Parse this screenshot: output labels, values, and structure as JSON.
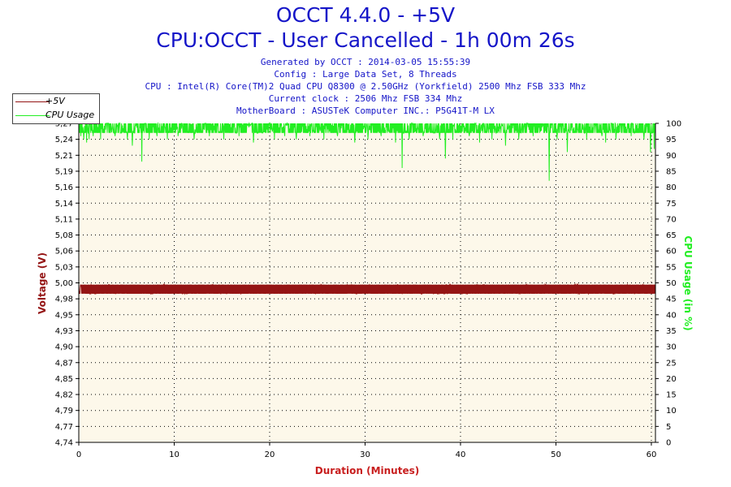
{
  "header": {
    "title": "OCCT 4.4.0 - +5V",
    "subtitle": "CPU:OCCT - User Cancelled - 1h 00m 26s",
    "info_lines": [
      "Generated by OCCT : 2014-03-05 15:55:39",
      "Config : Large Data Set, 8 Threads",
      "CPU : Intel(R) Core(TM)2 Quad CPU Q8300 @ 2.50GHz (Yorkfield) 2500 Mhz FSB 333 Mhz",
      "Current clock : 2506 Mhz FSB 334 Mhz",
      "MotherBoard : ASUSTeK Computer INC.: P5G41T-M LX"
    ]
  },
  "colors": {
    "voltage": "#941414",
    "cpu": "#22ee22",
    "title": "#1515c8",
    "plot_bg": "#fdf8ea",
    "axis_label": "#c81e1e"
  },
  "chart_data": {
    "type": "line",
    "title": "OCCT 4.4.0 - +5V",
    "subtitle": "CPU:OCCT - User Cancelled - 1h 00m 26s",
    "xlabel": "Duration (Minutes)",
    "ylabel_left": "Voltage (V)",
    "ylabel_right": "CPU Usage (in %)",
    "xlim": [
      0,
      60.43
    ],
    "x_ticks": [
      "0",
      "10",
      "20",
      "30",
      "40",
      "50",
      "60"
    ],
    "ylim_left": [
      4.74,
      5.27
    ],
    "y_left_ticks": [
      "4,74",
      "4,77",
      "4,79",
      "4,82",
      "4,85",
      "4,87",
      "4,90",
      "4,93",
      "4,95",
      "4,98",
      "5,00",
      "5,03",
      "5,06",
      "5,08",
      "5,11",
      "5,14",
      "5,16",
      "5,19",
      "5,21",
      "5,24",
      "5,27"
    ],
    "ylim_right": [
      0,
      100
    ],
    "y_right_ticks": [
      "0",
      "5",
      "10",
      "15",
      "20",
      "25",
      "30",
      "35",
      "40",
      "45",
      "50",
      "55",
      "60",
      "65",
      "70",
      "75",
      "80",
      "85",
      "90",
      "95",
      "100"
    ],
    "grid": true,
    "legend_position": "top-left",
    "series": [
      {
        "name": "+5V",
        "axis": "left",
        "band_low": 4.987,
        "band_high": 5.002,
        "dips": [
          [
            1.2,
            4.988
          ],
          [
            3.4,
            4.987
          ],
          [
            5.1,
            4.99
          ],
          [
            7.6,
            4.988
          ],
          [
            9.8,
            4.989
          ],
          [
            12.3,
            4.987
          ],
          [
            14.5,
            4.99
          ],
          [
            16.9,
            4.988
          ],
          [
            19.2,
            4.989
          ],
          [
            21.7,
            4.987
          ],
          [
            24.1,
            4.99
          ],
          [
            26.3,
            4.988
          ],
          [
            28.8,
            4.989
          ],
          [
            31.2,
            4.987
          ],
          [
            33.6,
            4.99
          ],
          [
            35.9,
            4.988
          ],
          [
            38.4,
            4.989
          ],
          [
            40.6,
            4.987
          ],
          [
            42.9,
            4.99
          ],
          [
            45.3,
            4.988
          ],
          [
            47.8,
            4.987
          ],
          [
            50.1,
            4.99
          ],
          [
            52.4,
            4.988
          ],
          [
            54.8,
            4.989
          ],
          [
            57.2,
            4.987
          ],
          [
            59.5,
            4.99
          ]
        ]
      },
      {
        "name": "CPU Usage",
        "axis": "right",
        "band_low": 97,
        "band_high": 100,
        "dips": [
          [
            0.2,
            96
          ],
          [
            0.5,
            95
          ],
          [
            0.8,
            94
          ],
          [
            1.1,
            95
          ],
          [
            1.5,
            96
          ],
          [
            2.3,
            95
          ],
          [
            3.8,
            96
          ],
          [
            5.1,
            95
          ],
          [
            5.6,
            93
          ],
          [
            6.6,
            88
          ],
          [
            7.4,
            95
          ],
          [
            8.2,
            96
          ],
          [
            9.3,
            95
          ],
          [
            10.4,
            96
          ],
          [
            12.1,
            95
          ],
          [
            13.7,
            96
          ],
          [
            15.2,
            95
          ],
          [
            16.8,
            96
          ],
          [
            18.3,
            94
          ],
          [
            20.5,
            95
          ],
          [
            21.6,
            96
          ],
          [
            22.8,
            95
          ],
          [
            24.2,
            96
          ],
          [
            25.7,
            95
          ],
          [
            27.1,
            96
          ],
          [
            28.9,
            94
          ],
          [
            30.3,
            95
          ],
          [
            31.7,
            96
          ],
          [
            33.2,
            94
          ],
          [
            33.9,
            86
          ],
          [
            34.6,
            95
          ],
          [
            36.1,
            96
          ],
          [
            37.8,
            95
          ],
          [
            38.4,
            89
          ],
          [
            39.2,
            95
          ],
          [
            40.9,
            96
          ],
          [
            42.0,
            94
          ],
          [
            43.3,
            95
          ],
          [
            44.7,
            93
          ],
          [
            46.1,
            95
          ],
          [
            47.6,
            96
          ],
          [
            49.3,
            82
          ],
          [
            50.1,
            95
          ],
          [
            51.2,
            91
          ],
          [
            53.2,
            95
          ],
          [
            54.8,
            96
          ],
          [
            55.2,
            94
          ],
          [
            56.3,
            95
          ],
          [
            57.9,
            96
          ],
          [
            59.2,
            95
          ],
          [
            59.9,
            91
          ],
          [
            60.3,
            92
          ]
        ]
      }
    ]
  }
}
